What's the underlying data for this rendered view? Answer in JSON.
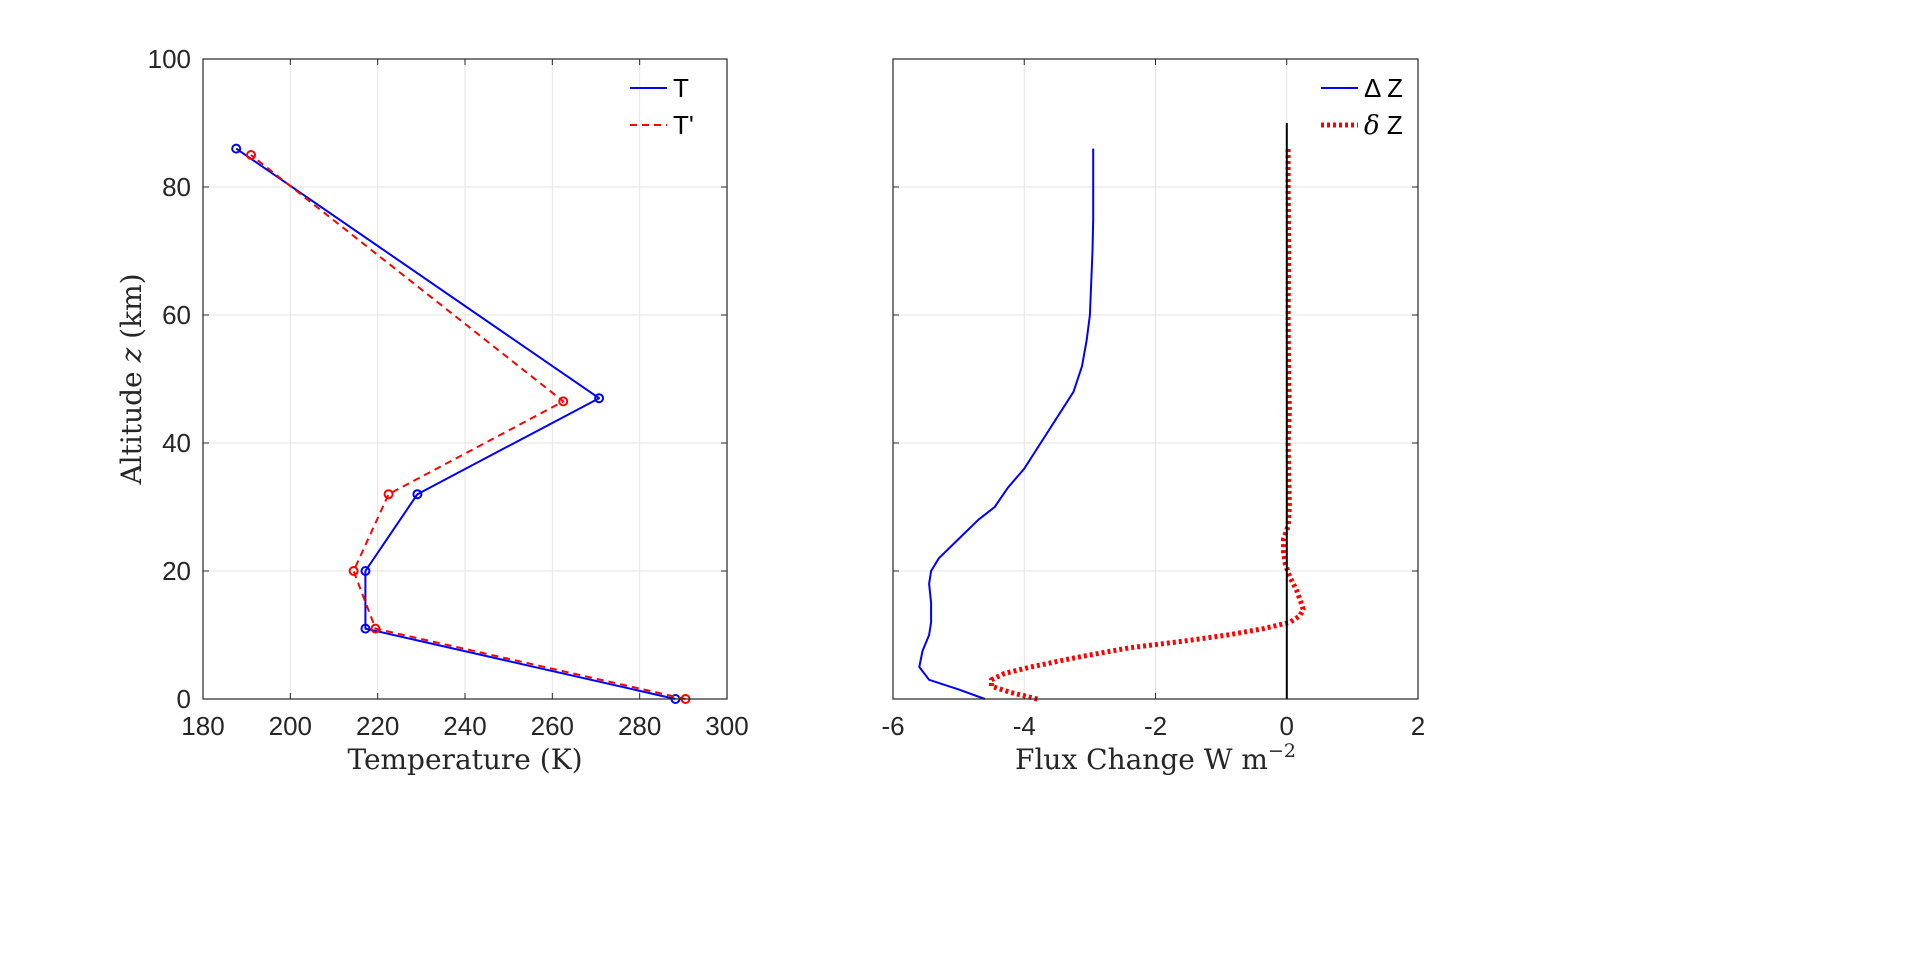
{
  "chart_data": [
    {
      "type": "line",
      "xlabel": "Temperature (K)",
      "ylabel_prefix": "Altitude ",
      "ylabel_var": "z",
      "ylabel_suffix": " (km)",
      "xlim": [
        180,
        300
      ],
      "ylim": [
        0,
        100
      ],
      "xticks": [
        180,
        200,
        220,
        240,
        260,
        280,
        300
      ],
      "yticks": [
        0,
        20,
        40,
        60,
        80,
        100
      ],
      "grid": true,
      "legend_position": "top-right",
      "series": [
        {
          "name": "T",
          "color": "#0000ff",
          "style": "solid",
          "marker": "circle",
          "points": [
            [
              288.2,
              0
            ],
            [
              217.2,
              11
            ],
            [
              217.2,
              20
            ],
            [
              229.1,
              32
            ],
            [
              270.7,
              47
            ],
            [
              187.6,
              86
            ]
          ]
        },
        {
          "name": "T'",
          "color": "#ff0000",
          "style": "dashed",
          "marker": "circle",
          "points": [
            [
              290.5,
              0
            ],
            [
              219.5,
              11
            ],
            [
              214.5,
              20
            ],
            [
              222.5,
              32
            ],
            [
              262.5,
              46.5
            ],
            [
              191,
              85
            ]
          ]
        }
      ]
    },
    {
      "type": "line",
      "xlabel_prefix": "Flux Change W m",
      "xlabel_sup": "−2",
      "xlim": [
        -6,
        2
      ],
      "ylim": [
        0,
        100
      ],
      "xticks": [
        -6,
        -4,
        -2,
        0,
        2
      ],
      "yticks": [
        0,
        20,
        40,
        60,
        80,
        100
      ],
      "grid": true,
      "legend_position": "top-right",
      "series": [
        {
          "name_symbol": "Δ",
          "name_text": " Z",
          "color": "#0000ff",
          "style": "solid",
          "points": [
            [
              -4.6,
              0
            ],
            [
              -5.0,
              1.5
            ],
            [
              -5.45,
              3
            ],
            [
              -5.6,
              5
            ],
            [
              -5.55,
              7.5
            ],
            [
              -5.45,
              10
            ],
            [
              -5.42,
              12
            ],
            [
              -5.42,
              15
            ],
            [
              -5.45,
              18
            ],
            [
              -5.42,
              20
            ],
            [
              -5.3,
              22
            ],
            [
              -5.0,
              25
            ],
            [
              -4.7,
              28
            ],
            [
              -4.45,
              30
            ],
            [
              -4.25,
              33
            ],
            [
              -4.0,
              36
            ],
            [
              -3.75,
              40
            ],
            [
              -3.5,
              44
            ],
            [
              -3.25,
              48
            ],
            [
              -3.12,
              52
            ],
            [
              -3.05,
              56
            ],
            [
              -3.0,
              60
            ],
            [
              -2.98,
              65
            ],
            [
              -2.96,
              70
            ],
            [
              -2.95,
              75
            ],
            [
              -2.95,
              80
            ],
            [
              -2.95,
              86
            ]
          ]
        },
        {
          "name_symbol": "δ",
          "name_text": " Z",
          "color": "#ff0000",
          "style": "dotted",
          "points": [
            [
              -3.8,
              0
            ],
            [
              -4.2,
              1
            ],
            [
              -4.5,
              2
            ],
            [
              -4.5,
              3
            ],
            [
              -4.3,
              4
            ],
            [
              -3.9,
              5
            ],
            [
              -3.2,
              6.5
            ],
            [
              -2.4,
              8
            ],
            [
              -1.6,
              9
            ],
            [
              -0.9,
              10
            ],
            [
              -0.35,
              11
            ],
            [
              0.05,
              12
            ],
            [
              0.2,
              13
            ],
            [
              0.25,
              14
            ],
            [
              0.22,
              15
            ],
            [
              0.15,
              17
            ],
            [
              0.05,
              19
            ],
            [
              -0.02,
              21
            ],
            [
              -0.05,
              23
            ],
            [
              -0.05,
              25
            ],
            [
              0.02,
              27
            ],
            [
              0.04,
              30
            ],
            [
              0.03,
              35
            ],
            [
              0.02,
              40
            ],
            [
              0.04,
              45
            ],
            [
              0.03,
              50
            ],
            [
              0.02,
              60
            ],
            [
              0.03,
              70
            ],
            [
              0.02,
              80
            ],
            [
              0.02,
              86
            ]
          ]
        },
        {
          "name": "",
          "color": "#000000",
          "style": "solid",
          "points": [
            [
              0,
              0
            ],
            [
              0,
              90
            ]
          ]
        }
      ]
    }
  ]
}
